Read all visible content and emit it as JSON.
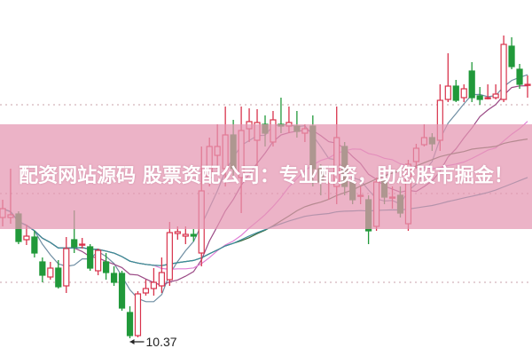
{
  "banner": {
    "title": "配资网站源码 股票资配公司：专业配资，助您股市掘金！"
  },
  "colors": {
    "up": "#d8334c",
    "down": "#21993a",
    "grid": "#c9a0a8",
    "banner": "#e496b2"
  },
  "chart_data": {
    "type": "candlestick",
    "title": "",
    "xlabel": "",
    "ylabel": "",
    "ylim": [
      10.17,
      14.18
    ],
    "grid": "horizontal-dotted",
    "grid_levels": [
      11.0,
      12.0,
      13.0
    ],
    "candle_fields": [
      "open",
      "high",
      "low",
      "close"
    ],
    "candles": [
      [
        11.73,
        11.93,
        11.63,
        11.83
      ],
      [
        11.73,
        12.28,
        11.66,
        11.76
      ],
      [
        11.77,
        11.8,
        11.43,
        11.46
      ],
      [
        11.48,
        11.65,
        11.42,
        11.52
      ],
      [
        11.51,
        11.58,
        11.28,
        11.33
      ],
      [
        11.23,
        11.28,
        11.0,
        11.08
      ],
      [
        11.06,
        11.23,
        11.03,
        11.16
      ],
      [
        11.16,
        11.25,
        10.93,
        10.95
      ],
      [
        10.96,
        11.51,
        10.88,
        11.38
      ],
      [
        11.48,
        11.81,
        11.33,
        11.4
      ],
      [
        11.42,
        11.5,
        11.38,
        11.43
      ],
      [
        11.4,
        11.43,
        11.13,
        11.16
      ],
      [
        11.13,
        11.38,
        11.08,
        11.36
      ],
      [
        11.23,
        11.33,
        11.03,
        11.11
      ],
      [
        11.1,
        11.18,
        10.96,
        11.0
      ],
      [
        11.1,
        11.13,
        10.68,
        10.71
      ],
      [
        10.66,
        10.73,
        10.37,
        10.4
      ],
      [
        10.4,
        10.9,
        10.38,
        10.87
      ],
      [
        10.88,
        11.03,
        10.85,
        10.93
      ],
      [
        10.93,
        11.16,
        10.85,
        11.0
      ],
      [
        10.96,
        11.28,
        10.88,
        11.11
      ],
      [
        11.03,
        11.68,
        10.96,
        11.56
      ],
      [
        11.55,
        11.63,
        11.48,
        11.57
      ],
      [
        11.52,
        11.63,
        11.43,
        11.54
      ],
      [
        11.54,
        11.6,
        11.46,
        11.52
      ],
      [
        11.33,
        12.53,
        11.18,
        12.03
      ],
      [
        12.18,
        12.63,
        12.08,
        12.53
      ],
      [
        12.43,
        12.78,
        12.28,
        12.53
      ],
      [
        12.28,
        12.98,
        12.08,
        12.66
      ],
      [
        12.66,
        12.83,
        12.18,
        12.28
      ],
      [
        12.18,
        12.98,
        11.78,
        12.71
      ],
      [
        12.73,
        12.96,
        12.58,
        12.81
      ],
      [
        12.6,
        12.95,
        12.28,
        12.8
      ],
      [
        12.78,
        12.88,
        12.53,
        12.68
      ],
      [
        12.58,
        12.93,
        12.53,
        12.83
      ],
      [
        12.78,
        13.08,
        12.68,
        12.76
      ],
      [
        12.76,
        12.98,
        12.68,
        12.8
      ],
      [
        12.76,
        12.93,
        12.63,
        12.7
      ],
      [
        12.68,
        12.78,
        12.58,
        12.73
      ],
      [
        12.76,
        12.88,
        12.08,
        12.28
      ],
      [
        12.28,
        12.33,
        11.98,
        12.13
      ],
      [
        12.12,
        12.23,
        11.93,
        12.13
      ],
      [
        12.08,
        12.98,
        11.88,
        12.63
      ],
      [
        12.53,
        12.58,
        11.98,
        12.08
      ],
      [
        12.13,
        12.18,
        11.88,
        11.93
      ],
      [
        11.97,
        12.08,
        11.88,
        11.98
      ],
      [
        11.93,
        11.98,
        11.43,
        11.58
      ],
      [
        11.63,
        12.18,
        11.58,
        12.13
      ],
      [
        12.16,
        12.23,
        11.88,
        11.96
      ],
      [
        11.95,
        12.08,
        11.83,
        11.96
      ],
      [
        11.98,
        12.08,
        11.73,
        11.78
      ],
      [
        11.66,
        12.38,
        11.58,
        12.33
      ],
      [
        12.36,
        12.56,
        12.28,
        12.51
      ],
      [
        12.55,
        12.78,
        12.53,
        12.63
      ],
      [
        12.63,
        12.68,
        12.48,
        12.56
      ],
      [
        12.6,
        13.23,
        12.48,
        13.05
      ],
      [
        13.06,
        13.58,
        13.03,
        13.21
      ],
      [
        13.21,
        13.28,
        13.03,
        13.05
      ],
      [
        13.08,
        13.23,
        13.03,
        13.18
      ],
      [
        13.38,
        13.48,
        13.03,
        13.08
      ],
      [
        13.1,
        13.2,
        13.0,
        13.06
      ],
      [
        13.07,
        13.23,
        13.06,
        13.08
      ],
      [
        13.08,
        13.23,
        13.06,
        13.12
      ],
      [
        13.06,
        13.78,
        13.03,
        13.68
      ],
      [
        13.66,
        13.76,
        13.4,
        13.43
      ],
      [
        13.4,
        13.46,
        13.18,
        13.23
      ],
      [
        13.22,
        13.33,
        13.08,
        13.23
      ]
    ],
    "moving_averages": [
      {
        "period": 5,
        "color": "#6f8ea3"
      },
      {
        "period": 10,
        "color": "#9b4a86"
      },
      {
        "period": 20,
        "color": "#e07fd6"
      },
      {
        "period": 30,
        "color": "#3d6b3d"
      },
      {
        "period": 60,
        "color": "#3b8c9c"
      }
    ],
    "annotations": [
      {
        "text": "10.37",
        "candle_index": 16
      }
    ]
  }
}
